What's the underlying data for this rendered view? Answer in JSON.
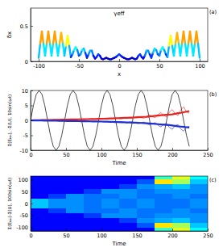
{
  "chart_data": [
    {
      "type": "line",
      "title": "γeff",
      "xlabel": "x",
      "ylabel": "δx",
      "panel_label": "(a)",
      "color": "jet",
      "xlim": [
        -110,
        110
      ],
      "ylim": [
        0,
        0.75
      ],
      "xticks": [
        -100,
        -50,
        0,
        50,
        100
      ],
      "yticks": [
        0,
        0.5
      ],
      "x": [
        -100,
        -98,
        -96,
        -94,
        -92,
        -90,
        -88,
        -86,
        -84,
        -82,
        -80,
        -78,
        -76,
        -74,
        -72,
        -70,
        -68,
        -66,
        -64,
        -62,
        -60,
        -58,
        -56,
        -54,
        -52,
        -50,
        -48,
        -46,
        -44,
        -42,
        -40,
        -38,
        -36,
        -34,
        -32,
        -30,
        -28,
        -26,
        -24,
        -22,
        -20,
        -18,
        -16,
        -14,
        -12,
        -10,
        -8,
        -6,
        -4,
        -2,
        0,
        2,
        4,
        6,
        8,
        10,
        12,
        14,
        16,
        18,
        20,
        22,
        24,
        26,
        28,
        30,
        32,
        34,
        36,
        38,
        40,
        42,
        44,
        46,
        48,
        50,
        52,
        54,
        56,
        58,
        60,
        62,
        64,
        66,
        68,
        70,
        72,
        74,
        76,
        78,
        80,
        82,
        84,
        86,
        88,
        90,
        92,
        94,
        96,
        98,
        100
      ],
      "values": [
        0.05,
        0.25,
        0.42,
        0.25,
        0.08,
        0.25,
        0.42,
        0.25,
        0.08,
        0.25,
        0.42,
        0.25,
        0.08,
        0.25,
        0.4,
        0.25,
        0.08,
        0.22,
        0.36,
        0.22,
        0.06,
        0.1,
        0.16,
        0.2,
        0.16,
        0.08,
        0.1,
        0.16,
        0.18,
        0.12,
        0.05,
        0.1,
        0.15,
        0.15,
        0.08,
        0.04,
        0.06,
        0.1,
        0.08,
        0.04,
        0.03,
        0.04,
        0.05,
        0.04,
        0.03,
        0.03,
        0.04,
        0.05,
        0.06,
        0.08,
        0.1,
        0.08,
        0.06,
        0.05,
        0.04,
        0.03,
        0.03,
        0.04,
        0.05,
        0.04,
        0.03,
        0.04,
        0.08,
        0.1,
        0.06,
        0.04,
        0.08,
        0.15,
        0.15,
        0.1,
        0.05,
        0.12,
        0.18,
        0.16,
        0.1,
        0.08,
        0.16,
        0.2,
        0.16,
        0.1,
        0.06,
        0.22,
        0.36,
        0.22,
        0.08,
        0.25,
        0.4,
        0.25,
        0.08,
        0.25,
        0.42,
        0.25,
        0.08,
        0.25,
        0.42,
        0.25,
        0.08,
        0.25,
        0.42,
        0.25,
        0.05
      ]
    },
    {
      "type": "line",
      "xlabel": "Time",
      "ylabel": "Σ(Eₖᵢₙ), -Σ(U), 10sin(ωt)",
      "panel_label": "(b)",
      "xlim": [
        0,
        250
      ],
      "ylim": [
        -10,
        10
      ],
      "xticks": [
        0,
        50,
        100,
        150,
        200,
        250
      ],
      "yticks": [
        -10,
        -5,
        0,
        5,
        10
      ],
      "x": [
        0,
        4,
        8,
        12,
        16,
        20,
        24,
        28,
        32,
        36,
        40,
        44,
        48,
        52,
        56,
        60,
        64,
        68,
        72,
        76,
        80,
        84,
        88,
        92,
        96,
        100,
        104,
        108,
        112,
        116,
        120,
        124,
        128,
        132,
        136,
        140,
        144,
        148,
        152,
        156,
        160,
        164,
        168,
        172,
        176,
        180,
        184,
        188,
        192,
        196,
        200,
        204,
        208,
        212,
        216,
        220,
        224
      ],
      "series": [
        {
          "color": "#000000",
          "line_style": "solid",
          "values": [
            0,
            5,
            8.7,
            10,
            8.7,
            5,
            0,
            -5,
            -8.7,
            -10,
            -8.7,
            -5,
            0,
            5,
            8.7,
            10,
            8.7,
            5,
            0,
            -5,
            -8.7,
            -10,
            -8.7,
            -5,
            0,
            5,
            8.7,
            10,
            8.7,
            5,
            0,
            -5,
            -8.7,
            -10,
            -8.7,
            -5,
            0,
            5,
            8.7,
            10,
            8.7,
            5,
            0,
            -5,
            -8.7,
            -10,
            -8.7,
            -5,
            0,
            5,
            8.7,
            10,
            8.7,
            5,
            0,
            -5,
            -8.7
          ]
        },
        {
          "color": "#e8231f",
          "line_style": "solid",
          "values": [
            0,
            0.03,
            0.05,
            0.06,
            0.07,
            0.1,
            0.13,
            0.15,
            0.16,
            0.17,
            0.2,
            0.23,
            0.25,
            0.26,
            0.27,
            0.3,
            0.33,
            0.35,
            0.36,
            0.37,
            0.4,
            0.43,
            0.45,
            0.46,
            0.47,
            0.5,
            0.56,
            0.6,
            0.62,
            0.64,
            0.8,
            0.6,
            0.5,
            0.8,
            1.0,
            0.7,
            0.6,
            1.1,
            1.3,
            0.9,
            0.7,
            1.4,
            1.8,
            1.2,
            0.9,
            2.0,
            2.6,
            1.6,
            1.2,
            2.8,
            3.6,
            2.2,
            1.6,
            3.5,
            4.5,
            2.8,
            2.4
          ]
        },
        {
          "color": "#1f2fd0",
          "line_style": "solid",
          "values": [
            0,
            -0.02,
            -0.04,
            -0.05,
            -0.06,
            -0.08,
            -0.1,
            -0.12,
            -0.13,
            -0.14,
            -0.16,
            -0.18,
            -0.2,
            -0.21,
            -0.22,
            -0.24,
            -0.26,
            -0.28,
            -0.29,
            -0.3,
            -0.32,
            -0.34,
            -0.36,
            -0.37,
            -0.38,
            -0.4,
            -0.45,
            -0.48,
            -0.5,
            -0.52,
            -0.6,
            -0.45,
            -0.4,
            -0.65,
            -0.8,
            -0.55,
            -0.5,
            -0.9,
            -1.05,
            -0.7,
            -0.6,
            -1.2,
            -1.5,
            -1.0,
            -0.8,
            -1.7,
            -2.2,
            -1.3,
            -1.0,
            -2.4,
            -3.0,
            -1.8,
            -1.4,
            -2.9,
            -3.6,
            -2.3,
            -2.0
          ]
        },
        {
          "color": "#e8231f",
          "line_style": "bold",
          "values": [
            0,
            0.02,
            0.04,
            0.06,
            0.08,
            0.1,
            0.12,
            0.14,
            0.16,
            0.18,
            0.2,
            0.22,
            0.24,
            0.26,
            0.28,
            0.3,
            0.32,
            0.34,
            0.36,
            0.38,
            0.4,
            0.42,
            0.44,
            0.46,
            0.48,
            0.5,
            0.54,
            0.58,
            0.62,
            0.66,
            0.7,
            0.74,
            0.78,
            0.82,
            0.86,
            0.9,
            0.95,
            1.0,
            1.05,
            1.1,
            1.15,
            1.2,
            1.3,
            1.4,
            1.5,
            1.6,
            1.7,
            1.8,
            1.85,
            1.9,
            2.0,
            2.2,
            2.4,
            2.5,
            2.7,
            2.9,
            3.1
          ]
        },
        {
          "color": "#1f2fd0",
          "line_style": "bold",
          "values": [
            0,
            -0.02,
            -0.03,
            -0.05,
            -0.06,
            -0.08,
            -0.1,
            -0.11,
            -0.13,
            -0.14,
            -0.16,
            -0.18,
            -0.19,
            -0.21,
            -0.22,
            -0.24,
            -0.26,
            -0.27,
            -0.29,
            -0.3,
            -0.32,
            -0.34,
            -0.35,
            -0.37,
            -0.38,
            -0.4,
            -0.43,
            -0.46,
            -0.5,
            -0.53,
            -0.56,
            -0.59,
            -0.62,
            -0.66,
            -0.69,
            -0.72,
            -0.76,
            -0.8,
            -0.84,
            -0.88,
            -0.92,
            -0.96,
            -1.04,
            -1.12,
            -1.2,
            -1.28,
            -1.36,
            -1.44,
            -1.5,
            -1.6,
            -1.7,
            -1.85,
            -2.0,
            -2.1,
            -2.2,
            -2.3,
            -2.4
          ]
        }
      ]
    },
    {
      "type": "heatmap",
      "xlabel": "Time",
      "ylabel": "Σ(Eₖᵢₙ)-Σ(U), 100sin(ωt)",
      "panel_label": "(c)",
      "xlim": [
        0,
        250
      ],
      "ylim": [
        -115,
        115
      ],
      "xticks": [
        0,
        50,
        100,
        150,
        200,
        250
      ],
      "yticks": [
        -100,
        -50,
        0,
        50,
        100
      ],
      "x_edges": [
        0,
        25,
        50,
        75,
        100,
        125,
        150,
        175,
        200,
        225,
        250
      ],
      "y_edges": [
        120,
        100,
        80,
        60,
        40,
        20,
        0,
        -20,
        -40,
        -60,
        -80,
        -100,
        -120
      ],
      "cells": [
        [
          0.05,
          0.05,
          0.05,
          0.05,
          0.05,
          0.05,
          0.05,
          0.6,
          0.9,
          0.5
        ],
        [
          0.05,
          0.05,
          0.05,
          0.05,
          0.05,
          0.05,
          0.2,
          1.0,
          0.8,
          0.4
        ],
        [
          0.05,
          0.05,
          0.05,
          0.05,
          0.05,
          0.15,
          0.3,
          0.35,
          0.4,
          0.3
        ],
        [
          0.05,
          0.05,
          0.05,
          0.15,
          0.3,
          0.3,
          0.25,
          0.3,
          0.3,
          0.3
        ],
        [
          0.05,
          0.15,
          0.3,
          0.25,
          0.25,
          0.3,
          0.25,
          0.25,
          0.3,
          0.25
        ],
        [
          0.4,
          0.3,
          0.3,
          0.25,
          0.3,
          0.25,
          0.3,
          0.25,
          0.25,
          0.3
        ],
        [
          0.4,
          0.3,
          0.3,
          0.25,
          0.3,
          0.25,
          0.3,
          0.25,
          0.25,
          0.3
        ],
        [
          0.05,
          0.15,
          0.3,
          0.25,
          0.25,
          0.3,
          0.25,
          0.25,
          0.3,
          0.25
        ],
        [
          0.05,
          0.05,
          0.05,
          0.15,
          0.3,
          0.3,
          0.25,
          0.3,
          0.3,
          0.3
        ],
        [
          0.05,
          0.05,
          0.05,
          0.05,
          0.05,
          0.15,
          0.3,
          0.35,
          0.4,
          0.3
        ],
        [
          0.05,
          0.05,
          0.05,
          0.05,
          0.05,
          0.05,
          0.2,
          1.0,
          0.8,
          0.4
        ],
        [
          0.05,
          0.05,
          0.05,
          0.05,
          0.05,
          0.05,
          0.05,
          0.6,
          0.9,
          0.5
        ]
      ]
    }
  ]
}
